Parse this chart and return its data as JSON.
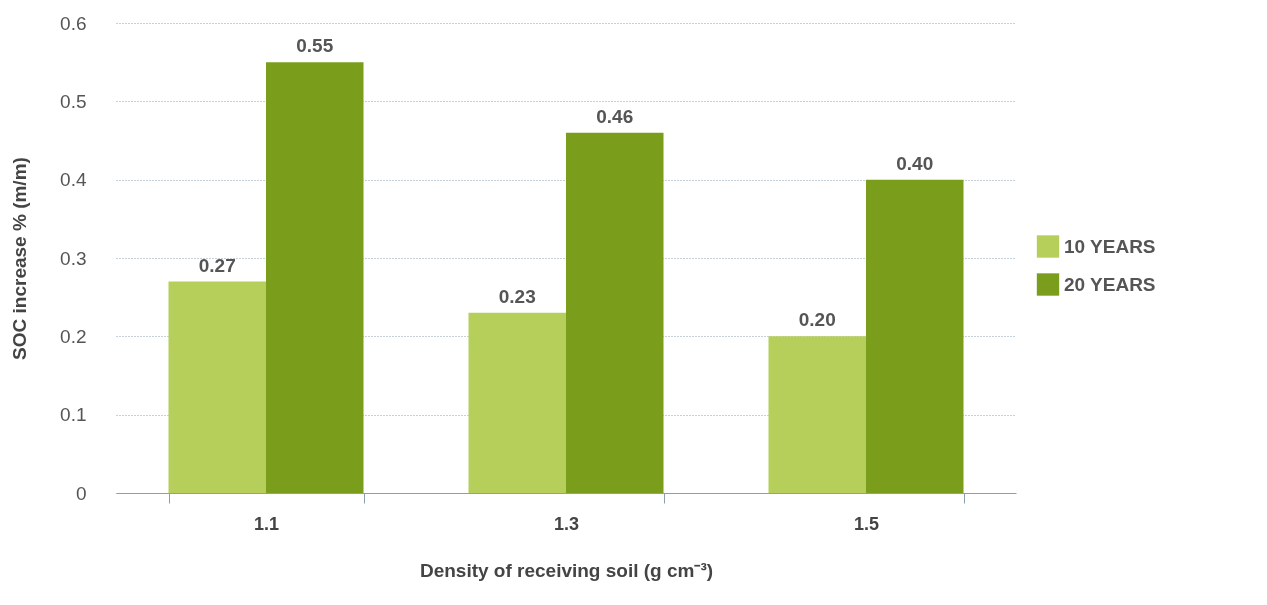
{
  "chart_data": {
    "type": "bar",
    "xlabel": "Density of receiving soil (g cm⁻³)",
    "ylabel": "SOC increase % (m/m)",
    "categories": [
      "1.1",
      "1.3",
      "1.5"
    ],
    "series": [
      {
        "name": "10 YEARS",
        "color": "#b6cf5a",
        "values": [
          0.27,
          0.23,
          0.2
        ],
        "value_labels": [
          "0.27",
          "0.23",
          "0.20"
        ]
      },
      {
        "name": "20 YEARS",
        "color": "#7a9e1c",
        "values": [
          0.55,
          0.46,
          0.4
        ],
        "value_labels": [
          "0.55",
          "0.46",
          "0.40"
        ]
      }
    ],
    "ylim": [
      0,
      0.6
    ],
    "yticks": [
      0,
      0.1,
      0.2,
      0.3,
      0.4,
      0.5,
      0.6
    ],
    "grid": "y",
    "legend": "right"
  }
}
